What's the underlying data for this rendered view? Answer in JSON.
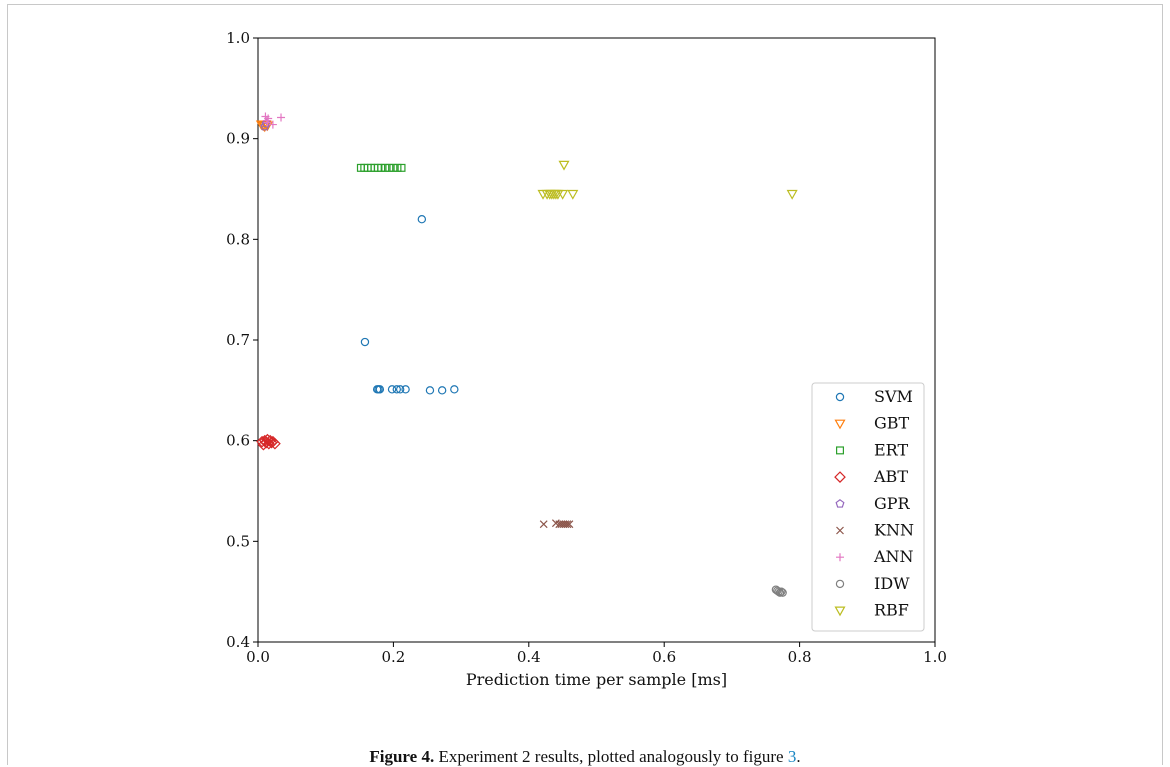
{
  "caption": {
    "figure_label": "Figure 4.",
    "text": " Experiment 2 results, plotted analogously to figure ",
    "link": "3",
    "end": "."
  },
  "chart_data": {
    "type": "scatter",
    "title": "",
    "xlabel": "Prediction time per sample [ms]",
    "ylabel": "",
    "xlim": [
      0.0,
      1.0
    ],
    "ylim": [
      0.4,
      1.0
    ],
    "xticks": [
      "0.0",
      "0.2",
      "0.4",
      "0.6",
      "0.8",
      "1.0"
    ],
    "yticks": [
      "0.4",
      "0.5",
      "0.6",
      "0.7",
      "0.8",
      "0.9",
      "1.0"
    ],
    "grid": false,
    "legend_position": "bottom-right",
    "series": [
      {
        "name": "SVM",
        "marker": "circle",
        "color": "#1f77b4",
        "points": [
          [
            0.242,
            0.82
          ],
          [
            0.158,
            0.698
          ],
          [
            0.176,
            0.651
          ],
          [
            0.178,
            0.651
          ],
          [
            0.18,
            0.651
          ],
          [
            0.198,
            0.651
          ],
          [
            0.205,
            0.651
          ],
          [
            0.21,
            0.651
          ],
          [
            0.218,
            0.651
          ],
          [
            0.254,
            0.65
          ],
          [
            0.272,
            0.65
          ],
          [
            0.29,
            0.651
          ]
        ]
      },
      {
        "name": "GBT",
        "marker": "triangle_down",
        "color": "#ff7f0e",
        "points": [
          [
            0.005,
            0.914
          ],
          [
            0.008,
            0.913
          ],
          [
            0.01,
            0.912
          ],
          [
            0.012,
            0.914
          ],
          [
            0.014,
            0.913
          ]
        ]
      },
      {
        "name": "ERT",
        "marker": "square",
        "color": "#2ca02c",
        "points": [
          [
            0.152,
            0.871
          ],
          [
            0.157,
            0.871
          ],
          [
            0.162,
            0.871
          ],
          [
            0.167,
            0.871
          ],
          [
            0.172,
            0.871
          ],
          [
            0.177,
            0.871
          ],
          [
            0.182,
            0.871
          ],
          [
            0.188,
            0.871
          ],
          [
            0.194,
            0.871
          ],
          [
            0.2,
            0.871
          ],
          [
            0.206,
            0.871
          ],
          [
            0.212,
            0.871
          ]
        ]
      },
      {
        "name": "ABT",
        "marker": "diamond",
        "color": "#d62728",
        "points": [
          [
            0.006,
            0.599
          ],
          [
            0.008,
            0.596
          ],
          [
            0.01,
            0.6
          ],
          [
            0.012,
            0.598
          ],
          [
            0.014,
            0.601
          ],
          [
            0.016,
            0.597
          ],
          [
            0.018,
            0.6
          ],
          [
            0.02,
            0.598
          ],
          [
            0.022,
            0.599
          ],
          [
            0.025,
            0.597
          ]
        ]
      },
      {
        "name": "GPR",
        "marker": "pentagon",
        "color": "#9467bd",
        "points": [
          [
            0.01,
            0.912
          ],
          [
            0.012,
            0.915
          ]
        ]
      },
      {
        "name": "KNN",
        "marker": "x",
        "color": "#8c564b",
        "points": [
          [
            0.422,
            0.517
          ],
          [
            0.44,
            0.518
          ],
          [
            0.445,
            0.517
          ],
          [
            0.448,
            0.517
          ],
          [
            0.451,
            0.517
          ],
          [
            0.454,
            0.517
          ],
          [
            0.457,
            0.517
          ],
          [
            0.46,
            0.517
          ]
        ]
      },
      {
        "name": "ANN",
        "marker": "plus",
        "color": "#e377c2",
        "points": [
          [
            0.011,
            0.922
          ],
          [
            0.013,
            0.918
          ],
          [
            0.014,
            0.916
          ],
          [
            0.015,
            0.92
          ],
          [
            0.022,
            0.914
          ],
          [
            0.034,
            0.921
          ]
        ]
      },
      {
        "name": "IDW",
        "marker": "circle",
        "color": "#7f7f7f",
        "points": [
          [
            0.765,
            0.452
          ],
          [
            0.767,
            0.451
          ],
          [
            0.769,
            0.45
          ],
          [
            0.771,
            0.449
          ],
          [
            0.773,
            0.45
          ],
          [
            0.775,
            0.449
          ]
        ]
      },
      {
        "name": "RBF",
        "marker": "triangle_down",
        "color": "#bcbd22",
        "points": [
          [
            0.452,
            0.874
          ],
          [
            0.421,
            0.845
          ],
          [
            0.427,
            0.845
          ],
          [
            0.431,
            0.845
          ],
          [
            0.434,
            0.845
          ],
          [
            0.437,
            0.845
          ],
          [
            0.44,
            0.845
          ],
          [
            0.443,
            0.845
          ],
          [
            0.45,
            0.845
          ],
          [
            0.465,
            0.845
          ],
          [
            0.789,
            0.845
          ]
        ]
      }
    ]
  }
}
